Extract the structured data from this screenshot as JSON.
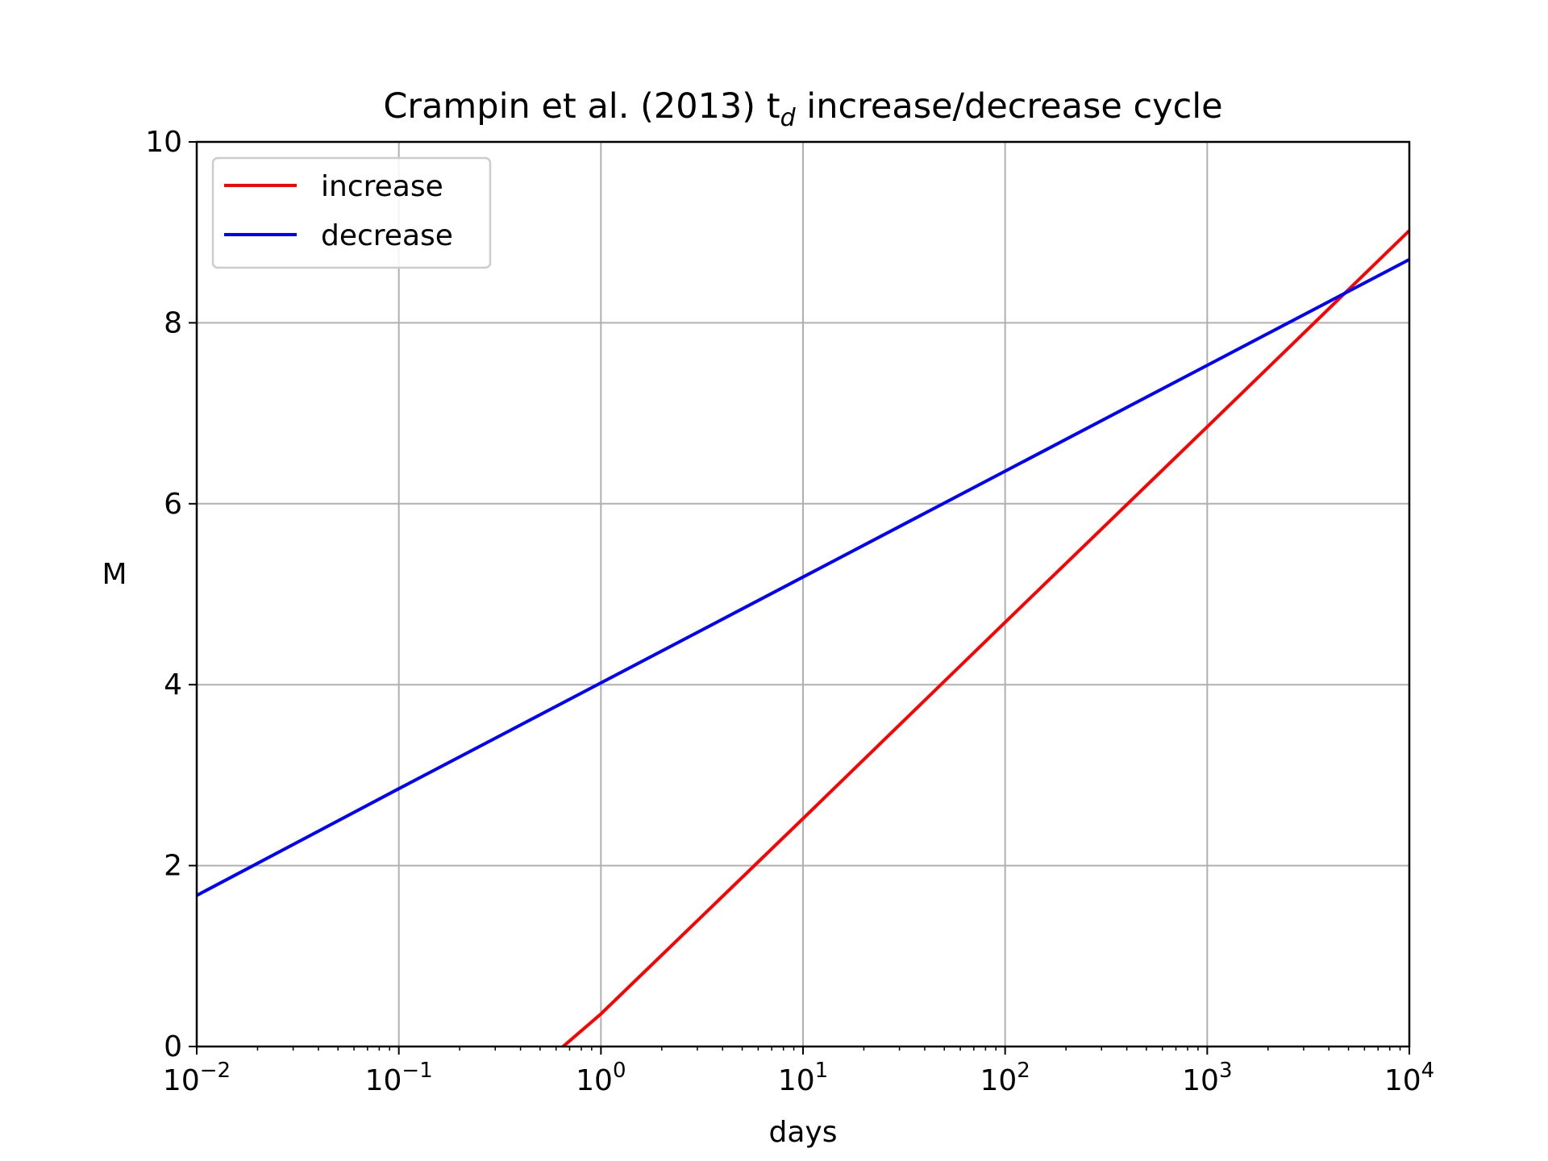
{
  "chart_data": {
    "type": "line",
    "title": "Crampin et al. (2013) t",
    "title_subscript": "d",
    "title_suffix": " increase/decrease cycle",
    "xlabel": "days",
    "ylabel": "M",
    "xscale": "log",
    "xlim": [
      0.01,
      10000
    ],
    "ylim": [
      0,
      10
    ],
    "x_ticks": [
      0.01,
      0.1,
      1,
      10,
      100,
      1000,
      10000
    ],
    "x_tick_labels": [
      {
        "base": "10",
        "exp": "−2"
      },
      {
        "base": "10",
        "exp": "−1"
      },
      {
        "base": "10",
        "exp": "0"
      },
      {
        "base": "10",
        "exp": "1"
      },
      {
        "base": "10",
        "exp": "2"
      },
      {
        "base": "10",
        "exp": "3"
      },
      {
        "base": "10",
        "exp": "4"
      }
    ],
    "y_ticks": [
      0,
      2,
      4,
      6,
      8,
      10
    ],
    "y_tick_labels": [
      "0",
      "2",
      "4",
      "6",
      "8",
      "10"
    ],
    "grid": true,
    "legend_position": "top-left",
    "series": [
      {
        "name": "increase",
        "color": "#ff0000",
        "x": [
          0.65,
          1,
          10,
          100,
          1000,
          10000
        ],
        "y": [
          0.0,
          0.36,
          2.52,
          4.69,
          6.85,
          9.02
        ]
      },
      {
        "name": "decrease",
        "color": "#0000ff",
        "x": [
          0.01,
          0.1,
          1,
          10,
          100,
          1000,
          10000
        ],
        "y": [
          1.67,
          2.85,
          4.02,
          5.19,
          6.36,
          7.53,
          8.7
        ]
      }
    ]
  }
}
